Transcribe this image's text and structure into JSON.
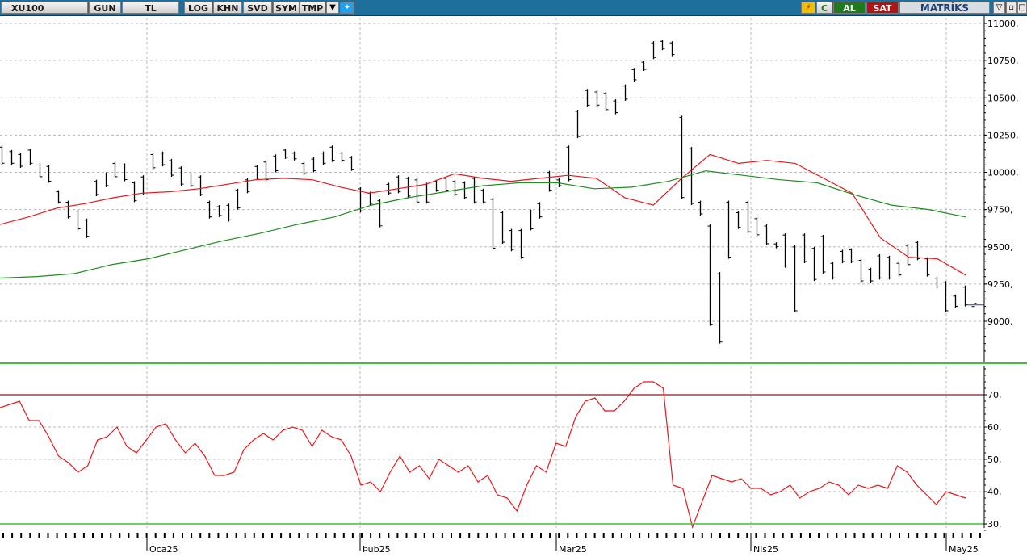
{
  "toolbar": {
    "symbol": "XU100",
    "period": "GUN",
    "currency": "TL",
    "buttons": [
      "LOG",
      "KHN",
      "SVD",
      "SYM",
      "TMP"
    ],
    "buy": "AL",
    "sell": "SAT",
    "brand": "MATRİKS",
    "refresh_icon": "C",
    "colors": {
      "toolbar": "#1f6f9c",
      "buy": "#1f7a1f",
      "sell": "#b01515"
    }
  },
  "chart_data": [
    {
      "type": "ohlc",
      "title": "",
      "x_tick_labels": [
        "Oca25",
        "Þub25",
        "Mar25",
        "Nis25",
        "May25"
      ],
      "y_tick_labels": [
        "11000,",
        "10750,",
        "10500,",
        "10250,",
        "10000,",
        "9750,",
        "9500,",
        "9250,",
        "9000,"
      ],
      "ylim": [
        8750,
        11050
      ],
      "grid": true,
      "bars": [
        [
          10180,
          10050
        ],
        [
          10150,
          10050
        ],
        [
          10130,
          10030
        ],
        [
          10160,
          10050
        ],
        [
          10060,
          9960
        ],
        [
          10050,
          9930
        ],
        [
          9880,
          9790
        ],
        [
          9810,
          9690
        ],
        [
          9750,
          9610
        ],
        [
          9690,
          9560
        ],
        [
          9950,
          9840
        ],
        [
          10000,
          9900
        ],
        [
          10070,
          9960
        ],
        [
          10060,
          9940
        ],
        [
          9940,
          9800
        ],
        [
          9980,
          9850
        ],
        [
          10130,
          10020
        ],
        [
          10140,
          10040
        ],
        [
          10090,
          9970
        ],
        [
          10040,
          9910
        ],
        [
          10000,
          9900
        ],
        [
          9980,
          9840
        ],
        [
          9810,
          9690
        ],
        [
          9780,
          9700
        ],
        [
          9790,
          9670
        ],
        [
          9890,
          9750
        ],
        [
          9960,
          9860
        ],
        [
          10050,
          9950
        ],
        [
          10080,
          9940
        ],
        [
          10120,
          10000
        ],
        [
          10160,
          10090
        ],
        [
          10140,
          10080
        ],
        [
          10070,
          9980
        ],
        [
          10100,
          10000
        ],
        [
          10140,
          10050
        ],
        [
          10180,
          10070
        ],
        [
          10140,
          10070
        ],
        [
          10110,
          10010
        ],
        [
          9900,
          9730
        ],
        [
          9870,
          9780
        ],
        [
          9820,
          9630
        ],
        [
          9930,
          9850
        ],
        [
          9980,
          9860
        ],
        [
          9970,
          9830
        ],
        [
          9960,
          9790
        ],
        [
          9930,
          9790
        ],
        [
          9950,
          9870
        ],
        [
          9970,
          9870
        ],
        [
          9950,
          9840
        ],
        [
          9940,
          9820
        ],
        [
          9970,
          9790
        ],
        [
          9890,
          9790
        ],
        [
          9830,
          9480
        ],
        [
          9740,
          9520
        ],
        [
          9620,
          9470
        ],
        [
          9620,
          9420
        ],
        [
          9750,
          9610
        ],
        [
          9800,
          9690
        ],
        [
          10010,
          9870
        ],
        [
          9960,
          9900
        ],
        [
          10180,
          9940
        ],
        [
          10420,
          10230
        ],
        [
          10560,
          10440
        ],
        [
          10550,
          10440
        ],
        [
          10540,
          10410
        ],
        [
          10490,
          10390
        ],
        [
          10590,
          10480
        ],
        [
          10700,
          10610
        ],
        [
          10750,
          10680
        ],
        [
          10880,
          10760
        ],
        [
          10890,
          10820
        ],
        [
          10880,
          10780
        ],
        [
          10380,
          9820
        ],
        [
          10170,
          9780
        ],
        [
          9810,
          9710
        ],
        [
          9650,
          8970
        ],
        [
          9330,
          8850
        ],
        [
          9810,
          9420
        ],
        [
          9740,
          9620
        ],
        [
          9810,
          9590
        ],
        [
          9700,
          9570
        ],
        [
          9650,
          9510
        ],
        [
          9530,
          9490
        ],
        [
          9590,
          9360
        ],
        [
          9510,
          9060
        ],
        [
          9590,
          9390
        ],
        [
          9500,
          9270
        ],
        [
          9580,
          9320
        ],
        [
          9400,
          9280
        ],
        [
          9480,
          9390
        ],
        [
          9490,
          9390
        ],
        [
          9420,
          9260
        ],
        [
          9360,
          9260
        ],
        [
          9450,
          9280
        ],
        [
          9440,
          9280
        ],
        [
          9400,
          9300
        ],
        [
          9520,
          9370
        ],
        [
          9540,
          9410
        ],
        [
          9430,
          9300
        ],
        [
          9300,
          9220
        ],
        [
          9270,
          9060
        ],
        [
          9180,
          9090
        ],
        [
          9240,
          9100
        ],
        [
          9110,
          9110
        ]
      ],
      "moving_averages": [
        {
          "color": "#e8191c",
          "values": [
            9650,
            9700,
            9760,
            9790,
            9830,
            9860,
            9870,
            9890,
            9920,
            9950,
            9960,
            9950,
            9900,
            9860,
            9890,
            9920,
            9990,
            9960,
            9940,
            9960,
            9980,
            9960,
            9830,
            9780,
            9960,
            10120,
            10060,
            10080,
            10060,
            9960,
            9860,
            9560,
            9430,
            9420,
            9310
          ]
        },
        {
          "color": "#1e8c1e",
          "values": [
            9290,
            9300,
            9320,
            9380,
            9420,
            9480,
            9540,
            9590,
            9650,
            9700,
            9780,
            9830,
            9870,
            9910,
            9930,
            9930,
            9890,
            9900,
            9940,
            10010,
            9980,
            9950,
            9930,
            9850,
            9780,
            9750,
            9700
          ]
        }
      ]
    },
    {
      "type": "line",
      "title": "",
      "y_tick_labels": [
        "70,",
        "60,",
        "50,",
        "40,",
        "30,"
      ],
      "ylim": [
        27,
        79
      ],
      "reference_lines": [
        70,
        30
      ],
      "series": [
        {
          "color": "#e8191c",
          "values": [
            66,
            67,
            68,
            62,
            62,
            57,
            51,
            49,
            46,
            48,
            56,
            57,
            60,
            54,
            52,
            56,
            60,
            61,
            56,
            52,
            55,
            51,
            45,
            45,
            46,
            53,
            56,
            58,
            56,
            59,
            60,
            59,
            54,
            59,
            57,
            56,
            51,
            42,
            43,
            40,
            46,
            51,
            46,
            48,
            44,
            50,
            48,
            46,
            48,
            43,
            45,
            39,
            38,
            34,
            42,
            48,
            46,
            55,
            54,
            63,
            68,
            69,
            65,
            65,
            68,
            72,
            74,
            74,
            72,
            42,
            41,
            29,
            37,
            45,
            44,
            43,
            44,
            41,
            41,
            39,
            40,
            42,
            38,
            40,
            41,
            43,
            42,
            39,
            42,
            41,
            42,
            41,
            48,
            46,
            42,
            39,
            36,
            40,
            39,
            38
          ]
        }
      ]
    }
  ]
}
